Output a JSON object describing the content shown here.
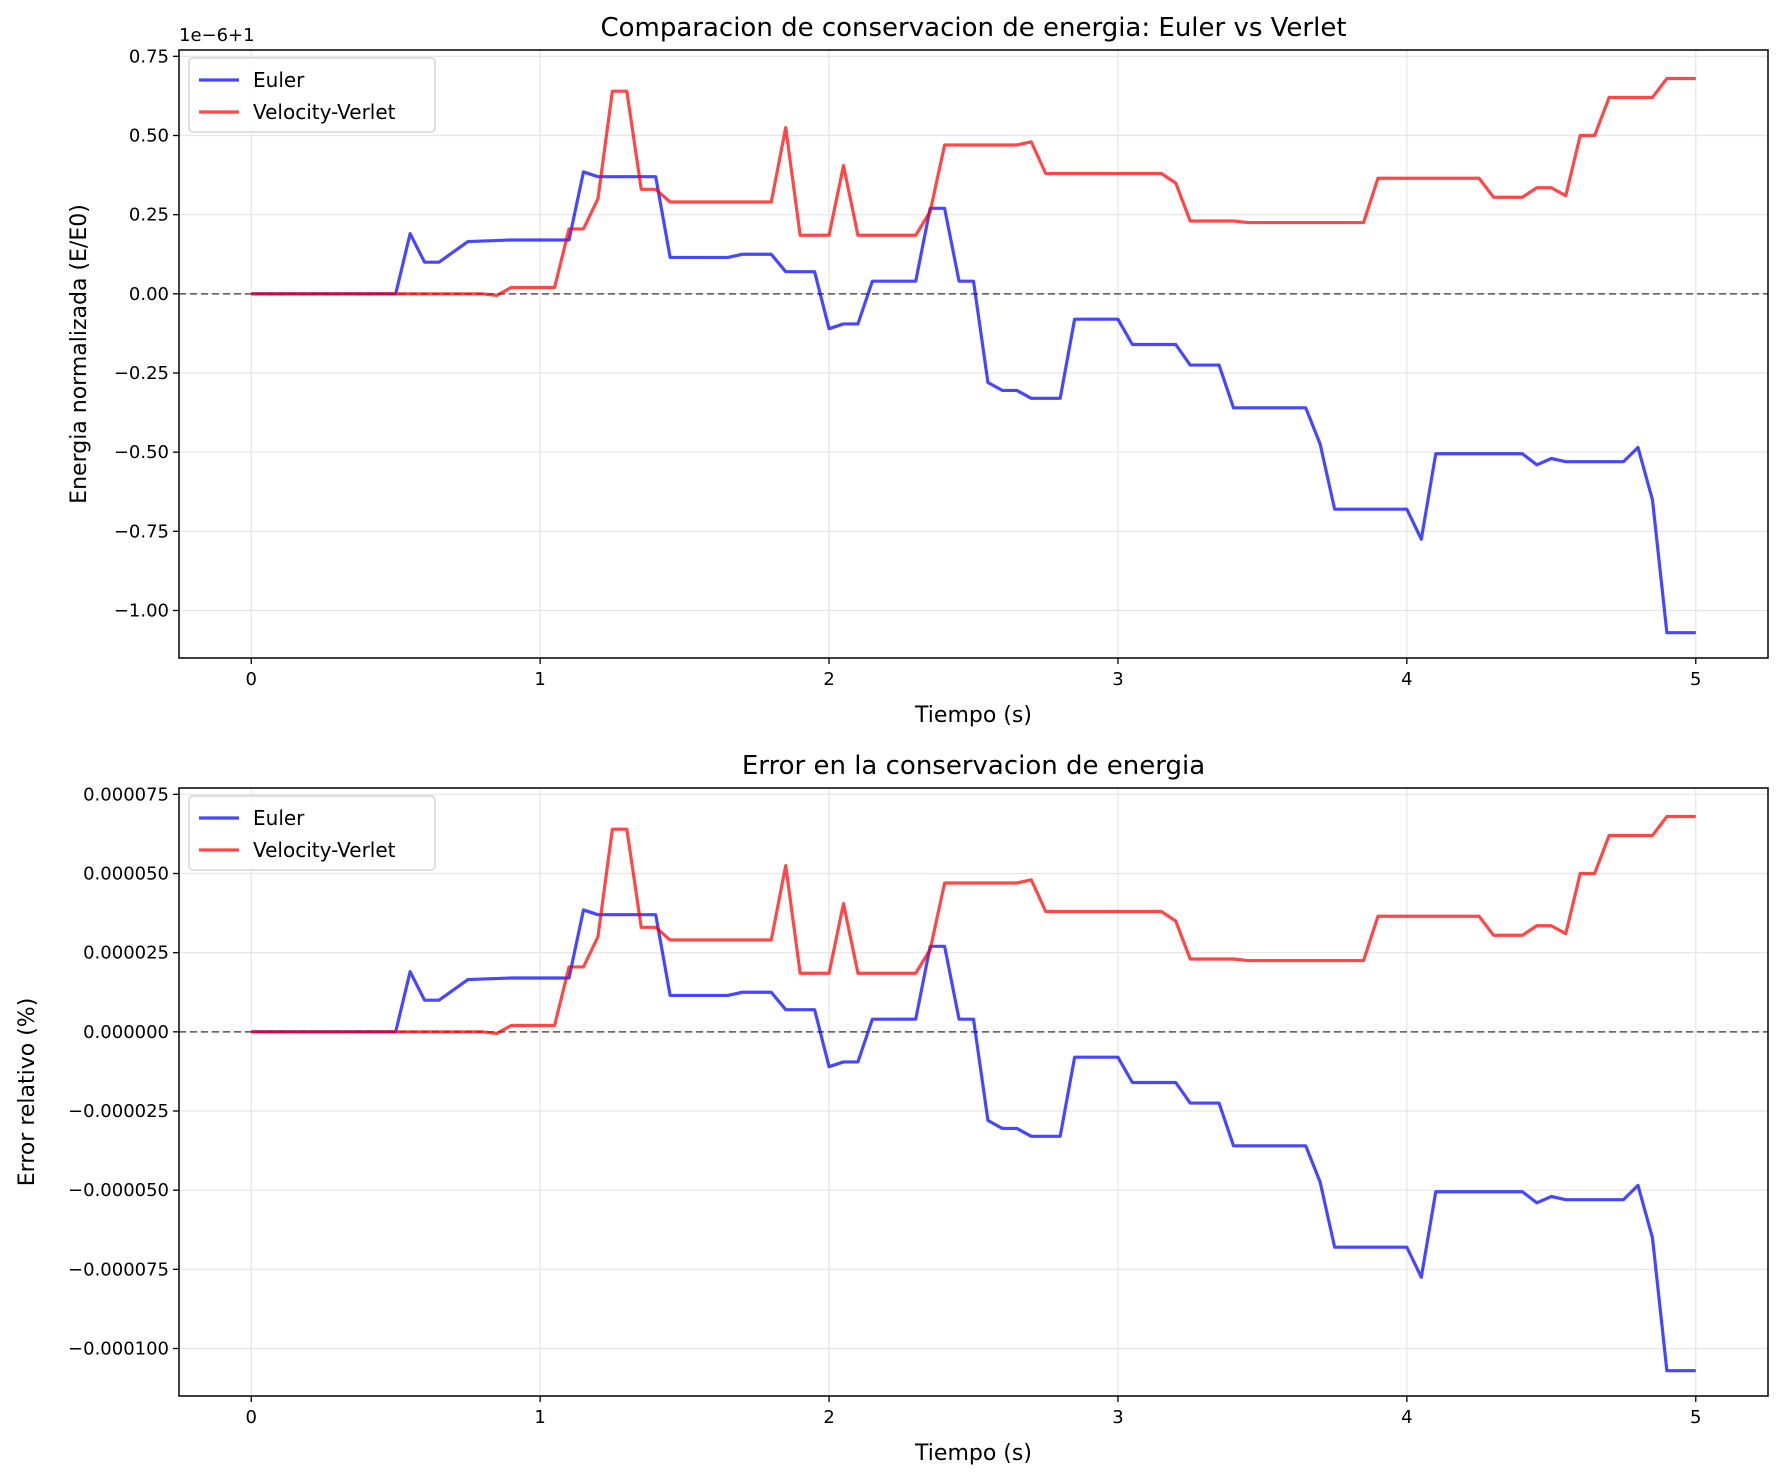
{
  "chart_data": [
    {
      "type": "line",
      "title": "Comparacion de conservacion de energia: Euler vs Verlet",
      "xlabel": "Tiempo (s)",
      "ylabel": "Energia normalizada (E/E0)",
      "offset_label": "1e−6+1",
      "xlim": [
        -0.25,
        5.25
      ],
      "ylim": [
        -1.15,
        0.77
      ],
      "xticks": [
        0,
        1,
        2,
        3,
        4,
        5
      ],
      "xtick_labels": [
        "0",
        "1",
        "2",
        "3",
        "4",
        "5"
      ],
      "yticks": [
        -1.0,
        -0.75,
        -0.5,
        -0.25,
        0.0,
        0.25,
        0.5,
        0.75
      ],
      "ytick_labels": [
        "−1.00",
        "−0.75",
        "−0.50",
        "−0.25",
        "0.00",
        "0.25",
        "0.50",
        "0.75"
      ],
      "grid": true,
      "legend_position": "upper-left",
      "hline": 0,
      "series": [
        {
          "name": "Euler",
          "color": "#0000ff",
          "x": [
            0,
            0.5,
            0.55,
            0.6,
            0.65,
            0.75,
            0.9,
            1.1,
            1.15,
            1.2,
            1.4,
            1.45,
            1.65,
            1.7,
            1.8,
            1.85,
            1.95,
            2.0,
            2.05,
            2.1,
            2.15,
            2.3,
            2.35,
            2.4,
            2.45,
            2.5,
            2.55,
            2.6,
            2.65,
            2.7,
            2.8,
            2.85,
            3.0,
            3.05,
            3.2,
            3.25,
            3.35,
            3.4,
            3.65,
            3.7,
            3.75,
            4.0,
            4.05,
            4.1,
            4.4,
            4.45,
            4.5,
            4.55,
            4.75,
            4.8,
            4.85,
            4.9,
            5.0
          ],
          "y": [
            0,
            0,
            0.19,
            0.1,
            0.1,
            0.165,
            0.17,
            0.17,
            0.385,
            0.37,
            0.37,
            0.115,
            0.115,
            0.125,
            0.125,
            0.07,
            0.07,
            -0.11,
            -0.095,
            -0.095,
            0.04,
            0.04,
            0.27,
            0.27,
            0.04,
            0.04,
            -0.28,
            -0.305,
            -0.305,
            -0.33,
            -0.33,
            -0.08,
            -0.08,
            -0.16,
            -0.16,
            -0.225,
            -0.225,
            -0.36,
            -0.36,
            -0.475,
            -0.68,
            -0.68,
            -0.775,
            -0.505,
            -0.505,
            -0.54,
            -0.52,
            -0.53,
            -0.53,
            -0.485,
            -0.65,
            -1.07,
            -1.07
          ]
        },
        {
          "name": "Velocity-Verlet",
          "color": "#ff0000",
          "x": [
            0,
            0.8,
            0.85,
            0.9,
            1.05,
            1.1,
            1.15,
            1.2,
            1.25,
            1.3,
            1.35,
            1.4,
            1.45,
            1.8,
            1.85,
            1.9,
            2.0,
            2.05,
            2.1,
            2.3,
            2.35,
            2.4,
            2.65,
            2.7,
            2.75,
            3.15,
            3.2,
            3.25,
            3.4,
            3.45,
            3.85,
            3.9,
            4.25,
            4.3,
            4.4,
            4.45,
            4.5,
            4.55,
            4.6,
            4.65,
            4.7,
            4.85,
            4.9,
            5.0
          ],
          "y": [
            0,
            0,
            -0.005,
            0.02,
            0.02,
            0.205,
            0.205,
            0.3,
            0.64,
            0.64,
            0.33,
            0.33,
            0.29,
            0.29,
            0.525,
            0.185,
            0.185,
            0.405,
            0.185,
            0.185,
            0.26,
            0.47,
            0.47,
            0.48,
            0.38,
            0.38,
            0.35,
            0.23,
            0.23,
            0.225,
            0.225,
            0.365,
            0.365,
            0.305,
            0.305,
            0.335,
            0.335,
            0.31,
            0.5,
            0.5,
            0.62,
            0.62,
            0.68,
            0.68
          ]
        }
      ]
    },
    {
      "type": "line",
      "title": "Error en la conservacion de energia",
      "xlabel": "Tiempo (s)",
      "ylabel": "Error relativo (%)",
      "xlim": [
        -0.25,
        5.25
      ],
      "ylim": [
        -0.000115,
        7.7e-05
      ],
      "xticks": [
        0,
        1,
        2,
        3,
        4,
        5
      ],
      "xtick_labels": [
        "0",
        "1",
        "2",
        "3",
        "4",
        "5"
      ],
      "yticks": [
        -0.0001,
        -7.5e-05,
        -5e-05,
        -2.5e-05,
        0,
        2.5e-05,
        5e-05,
        7.5e-05
      ],
      "ytick_labels": [
        "−0.000100",
        "−0.000075",
        "−0.000050",
        "−0.000025",
        "0.000000",
        "0.000025",
        "0.000050",
        "0.000075"
      ],
      "grid": true,
      "legend_position": "upper-left",
      "hline": 0,
      "series": [
        {
          "name": "Euler",
          "color": "#0000ff",
          "x": [
            0,
            0.5,
            0.55,
            0.6,
            0.65,
            0.75,
            0.9,
            1.1,
            1.15,
            1.2,
            1.4,
            1.45,
            1.65,
            1.7,
            1.8,
            1.85,
            1.95,
            2.0,
            2.05,
            2.1,
            2.15,
            2.3,
            2.35,
            2.4,
            2.45,
            2.5,
            2.55,
            2.6,
            2.65,
            2.7,
            2.8,
            2.85,
            3.0,
            3.05,
            3.2,
            3.25,
            3.35,
            3.4,
            3.65,
            3.7,
            3.75,
            4.0,
            4.05,
            4.1,
            4.4,
            4.45,
            4.5,
            4.55,
            4.75,
            4.8,
            4.85,
            4.9,
            5.0
          ],
          "y": [
            0,
            0,
            1.9e-05,
            1e-05,
            1e-05,
            1.65e-05,
            1.7e-05,
            1.7e-05,
            3.85e-05,
            3.7e-05,
            3.7e-05,
            1.15e-05,
            1.15e-05,
            1.25e-05,
            1.25e-05,
            7e-06,
            7e-06,
            -1.1e-05,
            -9.5e-06,
            -9.5e-06,
            4e-06,
            4e-06,
            2.7e-05,
            2.7e-05,
            4e-06,
            4e-06,
            -2.8e-05,
            -3.05e-05,
            -3.05e-05,
            -3.3e-05,
            -3.3e-05,
            -8e-06,
            -8e-06,
            -1.6e-05,
            -1.6e-05,
            -2.25e-05,
            -2.25e-05,
            -3.6e-05,
            -3.6e-05,
            -4.75e-05,
            -6.8e-05,
            -6.8e-05,
            -7.75e-05,
            -5.05e-05,
            -5.05e-05,
            -5.4e-05,
            -5.2e-05,
            -5.3e-05,
            -5.3e-05,
            -4.85e-05,
            -6.5e-05,
            -0.000107,
            -0.000107
          ]
        },
        {
          "name": "Velocity-Verlet",
          "color": "#ff0000",
          "x": [
            0,
            0.8,
            0.85,
            0.9,
            1.05,
            1.1,
            1.15,
            1.2,
            1.25,
            1.3,
            1.35,
            1.4,
            1.45,
            1.8,
            1.85,
            1.9,
            2.0,
            2.05,
            2.1,
            2.3,
            2.35,
            2.4,
            2.65,
            2.7,
            2.75,
            3.15,
            3.2,
            3.25,
            3.4,
            3.45,
            3.85,
            3.9,
            4.25,
            4.3,
            4.4,
            4.45,
            4.5,
            4.55,
            4.6,
            4.65,
            4.7,
            4.85,
            4.9,
            5.0
          ],
          "y": [
            0,
            0,
            -5e-07,
            2e-06,
            2e-06,
            2.05e-05,
            2.05e-05,
            3e-05,
            6.4e-05,
            6.4e-05,
            3.3e-05,
            3.3e-05,
            2.9e-05,
            2.9e-05,
            5.25e-05,
            1.85e-05,
            1.85e-05,
            4.05e-05,
            1.85e-05,
            1.85e-05,
            2.6e-05,
            4.7e-05,
            4.7e-05,
            4.8e-05,
            3.8e-05,
            3.8e-05,
            3.5e-05,
            2.3e-05,
            2.3e-05,
            2.25e-05,
            2.25e-05,
            3.65e-05,
            3.65e-05,
            3.05e-05,
            3.05e-05,
            3.35e-05,
            3.35e-05,
            3.1e-05,
            5e-05,
            5e-05,
            6.2e-05,
            6.2e-05,
            6.8e-05,
            6.8e-05
          ]
        }
      ]
    }
  ]
}
